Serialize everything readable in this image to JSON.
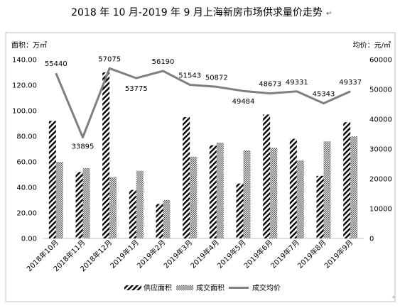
{
  "chart_data": {
    "type": "bar",
    "title": "2018 年 10 月-2019 年 9 月上海新房市场供求量价走势",
    "title_mark": "↵",
    "y_left_label": "面积：万㎡",
    "y_right_label": "均价：元/㎡",
    "categories": [
      "2018年10月",
      "2018年11月",
      "2018年12月",
      "2019年1月",
      "2019年2月",
      "2019年3月",
      "2019年4月",
      "2019年5月",
      "2019年6月",
      "2019年7月",
      "2019年8月",
      "2019年9月"
    ],
    "series": [
      {
        "name": "供应面积",
        "kind": "bar",
        "axis": "left",
        "pattern": "diagonal-hatch",
        "values": [
          92,
          52,
          130,
          38,
          27,
          95,
          73,
          43,
          97,
          78,
          49,
          91
        ]
      },
      {
        "name": "成交面积",
        "kind": "bar",
        "axis": "left",
        "pattern": "checker",
        "values": [
          60,
          55,
          48,
          53,
          30,
          64,
          75,
          69,
          71,
          61,
          76,
          80
        ]
      },
      {
        "name": "成交均价",
        "kind": "line",
        "axis": "right",
        "color": "#7f7f7f",
        "values": [
          55440,
          33895,
          57075,
          53775,
          56190,
          51543,
          50872,
          49484,
          48673,
          49331,
          45343,
          49337
        ],
        "labels": [
          "55440",
          "33895",
          "57075",
          "53775",
          "56190",
          "51543",
          "50872",
          "49484",
          "48673",
          "49331",
          "45343",
          "49337"
        ]
      }
    ],
    "y_left": {
      "min": 0,
      "max": 140,
      "ticks": [
        "0.00",
        "20.00",
        "40.00",
        "60.00",
        "80.00",
        "100.00",
        "120.00",
        "140.00"
      ]
    },
    "y_right": {
      "min": 0,
      "max": 60000,
      "ticks": [
        "0",
        "10000",
        "20000",
        "30000",
        "40000",
        "50000",
        "60000"
      ]
    },
    "grid": false,
    "legend_position": "bottom"
  }
}
